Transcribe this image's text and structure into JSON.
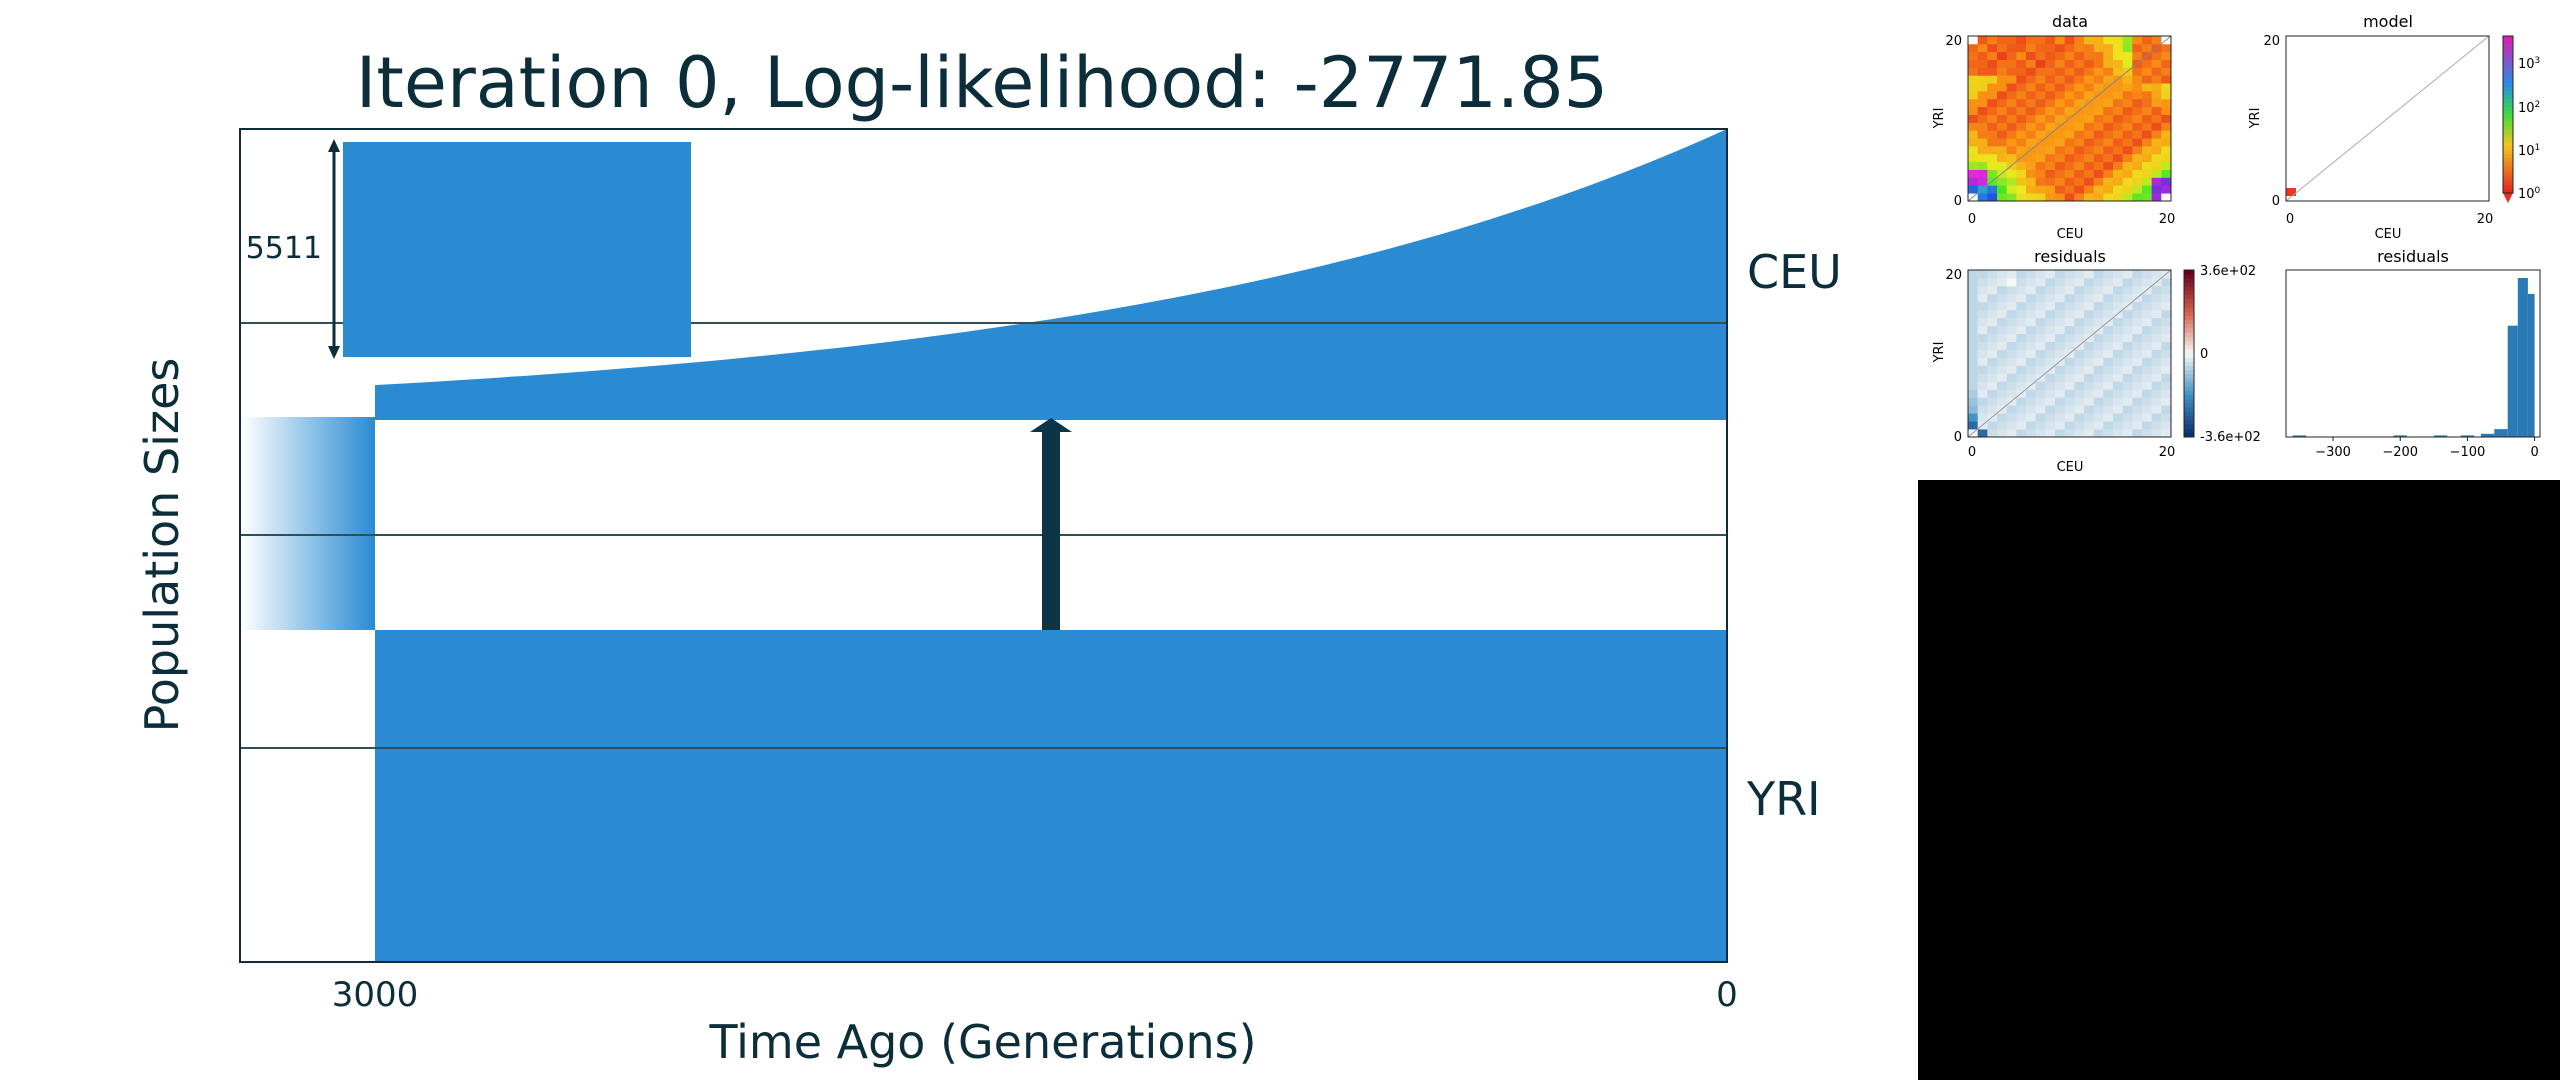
{
  "colors": {
    "population": "#2a8bd2",
    "ink": "#0c2e3b",
    "grid": "#2f4f5a",
    "hist_bar": "#2a7ab8",
    "background_dark": "#000000"
  },
  "chart_data": [
    {
      "type": "area",
      "title": "Iteration 0, Log-likelihood: -2771.85",
      "xlabel": "Time Ago (Generations)",
      "ylabel": "Population Sizes",
      "x_ticks": [
        "3000",
        "0"
      ],
      "x_range": [
        3000,
        0
      ],
      "populations": [
        {
          "name": "CEU",
          "start_time": 3000,
          "size_at_start": 0.12,
          "size_at_present": 1.0,
          "growth": "exponential"
        },
        {
          "name": "YRI",
          "start_time": 3000,
          "size_at_start": 1.0,
          "size_at_present": 1.0,
          "growth": "constant"
        }
      ],
      "ancestral_split": {
        "time": 3000,
        "gradient": true
      },
      "migration_arrow": {
        "from": "YRI",
        "to": "CEU",
        "time": 1500
      },
      "scale_bar": {
        "label": "5511",
        "value": 5511
      },
      "grid": true
    },
    {
      "type": "heatmap",
      "title": "data",
      "xlabel": "CEU",
      "ylabel": "YRI",
      "x_ticks": [
        "0",
        "20"
      ],
      "y_ticks": [
        "0",
        "20"
      ],
      "grid_size": 21,
      "scale": "log"
    },
    {
      "type": "heatmap",
      "title": "model",
      "xlabel": "CEU",
      "ylabel": "YRI",
      "x_ticks": [
        "0",
        "20"
      ],
      "y_ticks": [
        "0",
        "20"
      ],
      "colorbar_ticks": [
        "10",
        "10",
        "10",
        "10"
      ],
      "colorbar_exponents": [
        "3",
        "2",
        "1",
        "0"
      ],
      "scale": "log"
    },
    {
      "type": "heatmap",
      "title": "residuals",
      "xlabel": "CEU",
      "ylabel": "YRI",
      "x_ticks": [
        "0",
        "20"
      ],
      "y_ticks": [
        "0",
        "20"
      ],
      "colorbar_ticks": [
        "3.6e+02",
        "0",
        "-3.6e+02"
      ],
      "clim": [
        -360,
        360
      ]
    },
    {
      "type": "bar",
      "title": "residuals",
      "x_ticks": [
        "−300",
        "−200",
        "−100",
        "0"
      ],
      "xlim": [
        -370,
        8
      ],
      "bins": [
        {
          "x0": -360,
          "x1": -340,
          "count": 1
        },
        {
          "x0": -210,
          "x1": -190,
          "count": 1
        },
        {
          "x0": -150,
          "x1": -130,
          "count": 1
        },
        {
          "x0": -110,
          "x1": -90,
          "count": 1
        },
        {
          "x0": -80,
          "x1": -60,
          "count": 2
        },
        {
          "x0": -60,
          "x1": -40,
          "count": 5
        },
        {
          "x0": -40,
          "x1": -25,
          "count": 70
        },
        {
          "x0": -25,
          "x1": -10,
          "count": 100
        },
        {
          "x0": -10,
          "x1": 0,
          "count": 90
        }
      ]
    }
  ]
}
